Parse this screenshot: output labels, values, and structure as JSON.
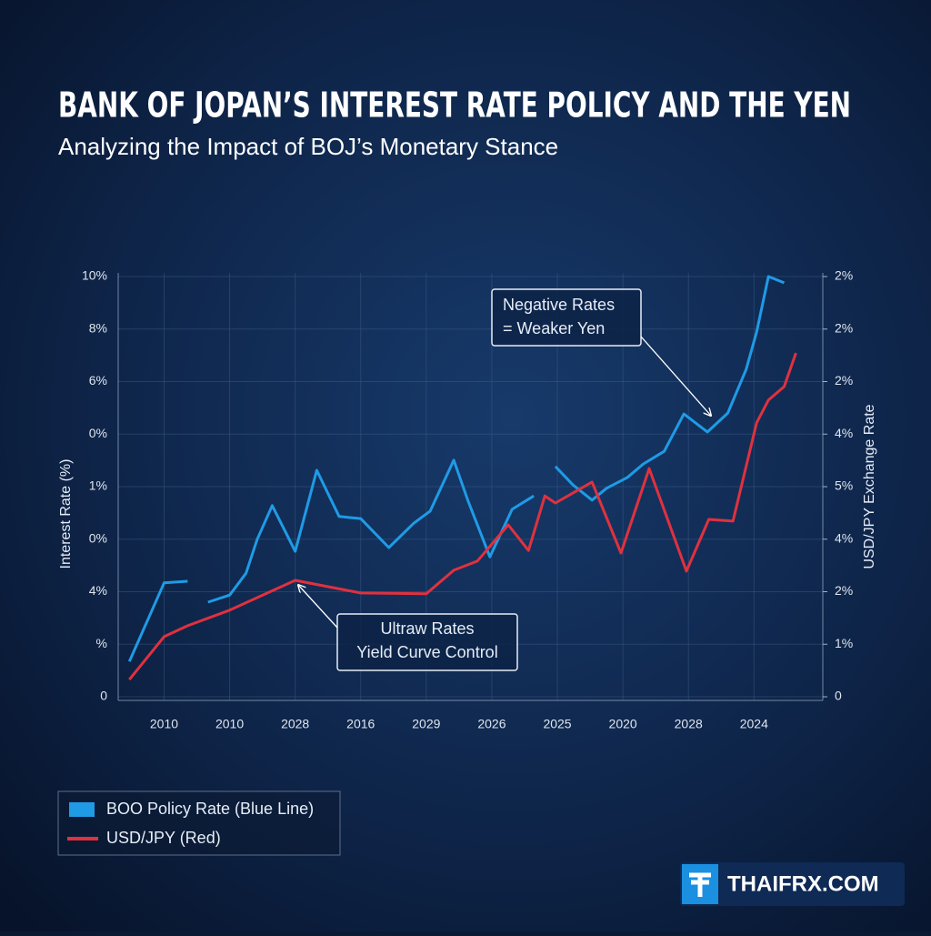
{
  "chart_data": {
    "type": "line",
    "title": "BANK OF JOPAN’S INTEREST RATE POLICY AND THE YEN",
    "subtitle": "Analyzing the Impact of BOJ’s Monetary Stance",
    "y_label": "Interest Rate (%)",
    "y2_label": "USD/JPY Exchange Rate",
    "xlim": [
      0.3,
      11.05
    ],
    "xticks": [
      {
        "value": 1,
        "label": "2010"
      },
      {
        "value": 2,
        "label": "2010"
      },
      {
        "value": 3,
        "label": "2028"
      },
      {
        "value": 4,
        "label": "2016"
      },
      {
        "value": 5,
        "label": "2029"
      },
      {
        "value": 6,
        "label": "2026"
      },
      {
        "value": 7,
        "label": "2025"
      },
      {
        "value": 8,
        "label": "2020"
      },
      {
        "value": 9,
        "label": "2028"
      },
      {
        "value": 10,
        "label": "2024"
      }
    ],
    "ylim": [
      0,
      10
    ],
    "yticks": [
      0,
      {
        "value": 1.25,
        "label": "%"
      },
      {
        "value": 2.5,
        "label": "4%"
      },
      {
        "value": 3.75,
        "label": "0%"
      },
      {
        "value": 5,
        "label": "1%"
      },
      {
        "value": 6.25,
        "label": "0%"
      },
      {
        "value": 7.5,
        "label": "6%"
      },
      {
        "value": 8.75,
        "label": "8%"
      },
      {
        "value": 10,
        "label": "10%"
      }
    ],
    "y2lim": [
      0,
      10
    ],
    "y2ticks": [
      0,
      {
        "value": 1.25,
        "label": "1%"
      },
      {
        "value": 2.5,
        "label": "2%"
      },
      {
        "value": 3.75,
        "label": "4%"
      },
      {
        "value": 5,
        "label": "5%"
      },
      {
        "value": 6.25,
        "label": "4%"
      },
      {
        "value": 7.5,
        "label": "2%"
      },
      {
        "value": 8.75,
        "label": "2%"
      },
      {
        "value": 10,
        "label": "2%"
      }
    ],
    "grid": true,
    "series": [
      {
        "name": "BOO Policy Rate (Blue Line)",
        "color": "#1f9be6",
        "x": [
          0.47,
          1.0,
          1.36,
          null,
          1.67,
          2.0,
          2.25,
          2.42,
          2.65,
          3.0,
          3.33,
          3.67,
          4.0,
          4.43,
          4.81,
          5.06,
          5.42,
          5.64,
          5.97,
          6.31,
          6.64,
          null,
          6.97,
          7.24,
          7.53,
          7.75,
          8.07,
          8.31,
          8.63,
          8.93,
          9.29,
          9.6,
          9.88,
          10.04,
          10.22,
          10.46
        ],
        "values": [
          0.84,
          2.71,
          2.75,
          null,
          2.25,
          2.42,
          2.94,
          3.74,
          4.55,
          3.46,
          5.39,
          4.29,
          4.24,
          3.55,
          4.13,
          4.42,
          5.63,
          4.65,
          3.33,
          4.46,
          4.78,
          null,
          5.48,
          5.04,
          4.68,
          4.96,
          5.22,
          5.54,
          5.84,
          6.73,
          6.3,
          6.75,
          7.79,
          8.68,
          10.0,
          9.85
        ]
      },
      {
        "name": "USD/JPY (Red)",
        "color": "#e0313f",
        "axis": "y2",
        "x": [
          0.47,
          1.0,
          1.36,
          2.0,
          3.0,
          4.0,
          5.0,
          5.42,
          5.78,
          6.25,
          6.56,
          6.81,
          6.97,
          7.53,
          7.97,
          8.4,
          8.97,
          9.31,
          9.68,
          10.04,
          10.22,
          10.46,
          10.64
        ],
        "values": [
          0.41,
          1.43,
          1.69,
          2.06,
          2.77,
          2.47,
          2.45,
          3.01,
          3.23,
          4.09,
          3.48,
          4.78,
          4.61,
          5.11,
          3.42,
          5.43,
          2.99,
          4.22,
          4.18,
          6.52,
          7.06,
          7.38,
          8.18
        ]
      }
    ],
    "annotations": [
      {
        "lines": [
          "Negative Rates",
          "= Weaker Yen"
        ]
      },
      {
        "lines": [
          "Ultraw Rates",
          "Yield Curve Control"
        ]
      }
    ],
    "brand": "THAIFRX.COM"
  }
}
